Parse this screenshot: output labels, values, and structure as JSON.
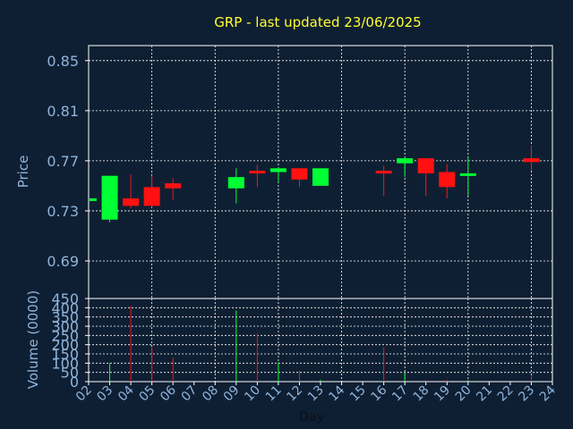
{
  "chart_data": {
    "type": "candlestick",
    "title": "GRP - last updated 23/06/2025",
    "xlabel": "Day",
    "price_panel": {
      "ylabel": "Price",
      "ylim": [
        0.66,
        0.862
      ],
      "yticks": [
        "0.85",
        "0.81",
        "0.77",
        "0.73",
        "0.69"
      ],
      "ytick_values": [
        0.85,
        0.81,
        0.77,
        0.73,
        0.69
      ]
    },
    "volume_panel": {
      "ylabel": "Volume (0000)",
      "ylim": [
        0,
        450
      ],
      "yticks": [
        "450",
        "400",
        "350",
        "300",
        "250",
        "200",
        "150",
        "100",
        "50",
        "0"
      ],
      "ytick_values": [
        450,
        400,
        350,
        300,
        250,
        200,
        150,
        100,
        50,
        0
      ]
    },
    "x_ticks": [
      "02",
      "03",
      "04",
      "05",
      "06",
      "07",
      "08",
      "09",
      "10",
      "11",
      "12",
      "13",
      "14",
      "15",
      "16",
      "17",
      "18",
      "19",
      "20",
      "21",
      "22",
      "23",
      "24"
    ],
    "x_tick_values": [
      2,
      3,
      4,
      5,
      6,
      7,
      8,
      9,
      10,
      11,
      12,
      13,
      14,
      15,
      16,
      17,
      18,
      19,
      20,
      21,
      22,
      23,
      24
    ],
    "xlim": [
      2,
      24
    ],
    "gridlines": true,
    "up_color": "#00ff33",
    "down_color": "#ff1111",
    "candles": [
      {
        "day": 2,
        "open": 0.74,
        "high": 0.74,
        "low": 0.74,
        "close": 0.74,
        "volume": 0
      },
      {
        "day": 3,
        "open": 0.723,
        "high": 0.758,
        "low": 0.721,
        "close": 0.758,
        "volume": 100
      },
      {
        "day": 4,
        "open": 0.74,
        "high": 0.759,
        "low": 0.732,
        "close": 0.734,
        "volume": 410
      },
      {
        "day": 5,
        "open": 0.749,
        "high": 0.758,
        "low": 0.733,
        "close": 0.734,
        "volume": 185
      },
      {
        "day": 6,
        "open": 0.752,
        "high": 0.756,
        "low": 0.739,
        "close": 0.748,
        "volume": 130
      },
      {
        "day": 9,
        "open": 0.748,
        "high": 0.764,
        "low": 0.736,
        "close": 0.757,
        "volume": 385
      },
      {
        "day": 10,
        "open": 0.762,
        "high": 0.767,
        "low": 0.749,
        "close": 0.76,
        "volume": 260
      },
      {
        "day": 11,
        "open": 0.761,
        "high": 0.765,
        "low": 0.753,
        "close": 0.764,
        "volume": 105
      },
      {
        "day": 12,
        "open": 0.764,
        "high": 0.764,
        "low": 0.749,
        "close": 0.755,
        "volume": 60
      },
      {
        "day": 13,
        "open": 0.75,
        "high": 0.764,
        "low": 0.75,
        "close": 0.764,
        "volume": 10
      },
      {
        "day": 16,
        "open": 0.762,
        "high": 0.766,
        "low": 0.742,
        "close": 0.76,
        "volume": 185
      },
      {
        "day": 17,
        "open": 0.768,
        "high": 0.773,
        "low": 0.757,
        "close": 0.772,
        "volume": 50
      },
      {
        "day": 18,
        "open": 0.772,
        "high": 0.772,
        "low": 0.742,
        "close": 0.76,
        "volume": 10
      },
      {
        "day": 19,
        "open": 0.761,
        "high": 0.767,
        "low": 0.74,
        "close": 0.749,
        "volume": 10
      },
      {
        "day": 20,
        "open": 0.758,
        "high": 0.773,
        "low": 0.742,
        "close": 0.76,
        "volume": 10
      },
      {
        "day": 23,
        "open": 0.772,
        "high": 0.782,
        "low": 0.762,
        "close": 0.769,
        "volume": 30
      }
    ]
  }
}
